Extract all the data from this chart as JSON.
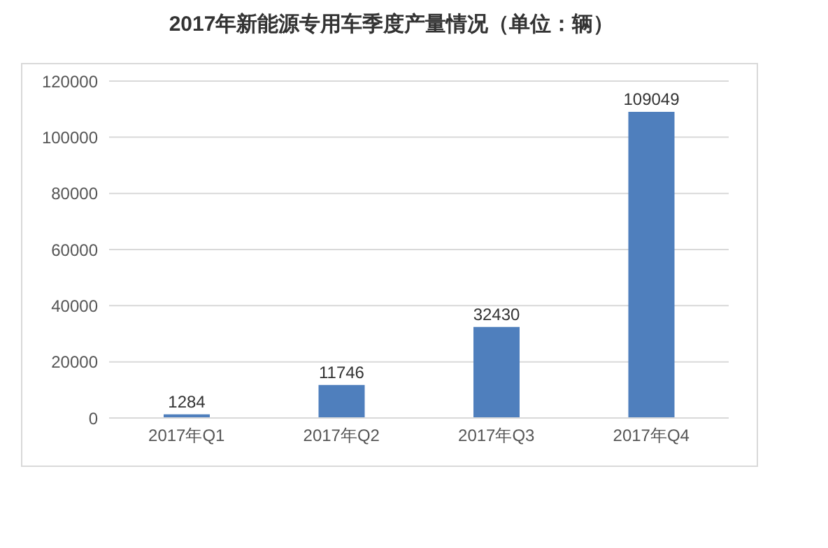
{
  "chart_data": {
    "type": "bar",
    "title": "2017年新能源专用车季度产量情况（单位：辆）",
    "categories": [
      "2017年Q1",
      "2017年Q2",
      "2017年Q3",
      "2017年Q4"
    ],
    "values": [
      1284,
      11746,
      32430,
      109049
    ],
    "color": "#4f7fbd",
    "ylim": [
      0,
      120000
    ],
    "yticks": [
      0,
      20000,
      40000,
      60000,
      80000,
      100000,
      120000
    ],
    "grid": "y",
    "data_labels": true,
    "legend": false
  }
}
